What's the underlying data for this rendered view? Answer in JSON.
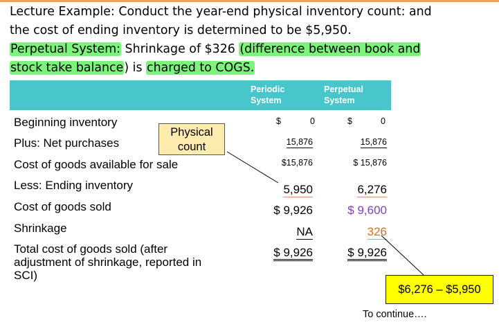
{
  "heading": {
    "line1": "Lecture Example: Conduct the year-end physical inventory count: and",
    "line2": "the cost of ending inventory is determined to be $5,950.",
    "line3_hl1": "Perpetual System:",
    "line3_mid": " Shrinkage of $326 ",
    "line3_hl2": "(difference between book and",
    "line4_hl1": "stock take balance",
    "line4_mid": ") is ",
    "line4_hl2": "charged to COGS."
  },
  "table": {
    "col_periodic": "Periodic\nSystem",
    "col_perpetual": "Perpetual\nSystem",
    "rows": {
      "beginning": {
        "label": "Beginning inventory",
        "p_sign": "$",
        "p_val": "0",
        "q_sign": "$",
        "q_val": "0"
      },
      "purchases": {
        "label": "Plus: Net purchases",
        "p_val": "15,876",
        "q_val": "15,876"
      },
      "available": {
        "label": "Cost of goods available for sale",
        "p_val": "$15,876",
        "q_val": "$ 15,876"
      },
      "ending": {
        "label": "Less:  Ending inventory",
        "p_val": "5,950",
        "q_val": "6,276"
      },
      "cogs": {
        "label": "Cost of goods sold",
        "p_val": "$ 9,926",
        "q_val": "$ 9,600"
      },
      "shrinkage": {
        "label": "Shrinkage",
        "p_val": "NA",
        "q_val": "326"
      },
      "total": {
        "label": "Total cost of goods sold (after\nadjustment of shrinkage, reported in\nSCI)",
        "p_val": "$ 9,926",
        "q_val": "$ 9,926"
      }
    }
  },
  "callouts": {
    "physical": "Physical\ncount",
    "difference": "$6,276 – $5,950"
  },
  "footer": {
    "continue": "To continue…."
  },
  "colors": {
    "highlight": "#7cf47c",
    "header": "#48c6cb",
    "perpetual_cogs": "#7f3fbf",
    "shrinkage": "#e26a1c",
    "callout_physical": "#fdecae",
    "callout_difference": "#ffff00"
  }
}
